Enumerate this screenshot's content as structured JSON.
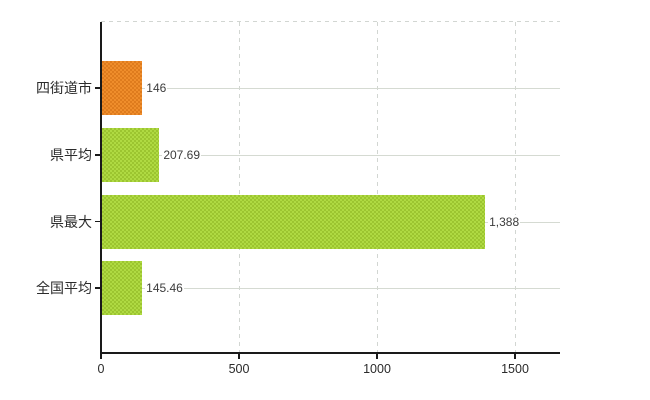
{
  "chart_data": {
    "type": "bar",
    "orientation": "horizontal",
    "title": "",
    "xlabel": "",
    "ylabel": "",
    "legend": null,
    "categories": [
      "四街道市",
      "県平均",
      "県最大",
      "全国平均"
    ],
    "values": [
      146,
      207.69,
      1388,
      145.46
    ],
    "value_labels": [
      "146",
      "207.69",
      "1,388",
      "145.46"
    ],
    "bar_colors": [
      "#de7b1d",
      "#9cc530",
      "#9cc530",
      "#9cc530"
    ],
    "bar_colors_alt": [
      "#ef8d2b",
      "#afda42",
      "#afda42",
      "#afda42"
    ],
    "x_ticks": [
      0,
      500,
      1000,
      1500
    ],
    "x_tick_labels": [
      "0",
      "500",
      "1000",
      "1500"
    ],
    "xlim": [
      0,
      1663
    ],
    "grid": {
      "vertical": "dashed light-gray at 500/1000/1500 and top border",
      "horizontal": "solid light-gray at each category center"
    }
  },
  "colors": {
    "axis": "#1a1a1a",
    "gridline_solid": "#d5dad2",
    "gridline_dashed": "#d2d6d2",
    "text": "#3c3c3c",
    "background": "#ffffff"
  }
}
